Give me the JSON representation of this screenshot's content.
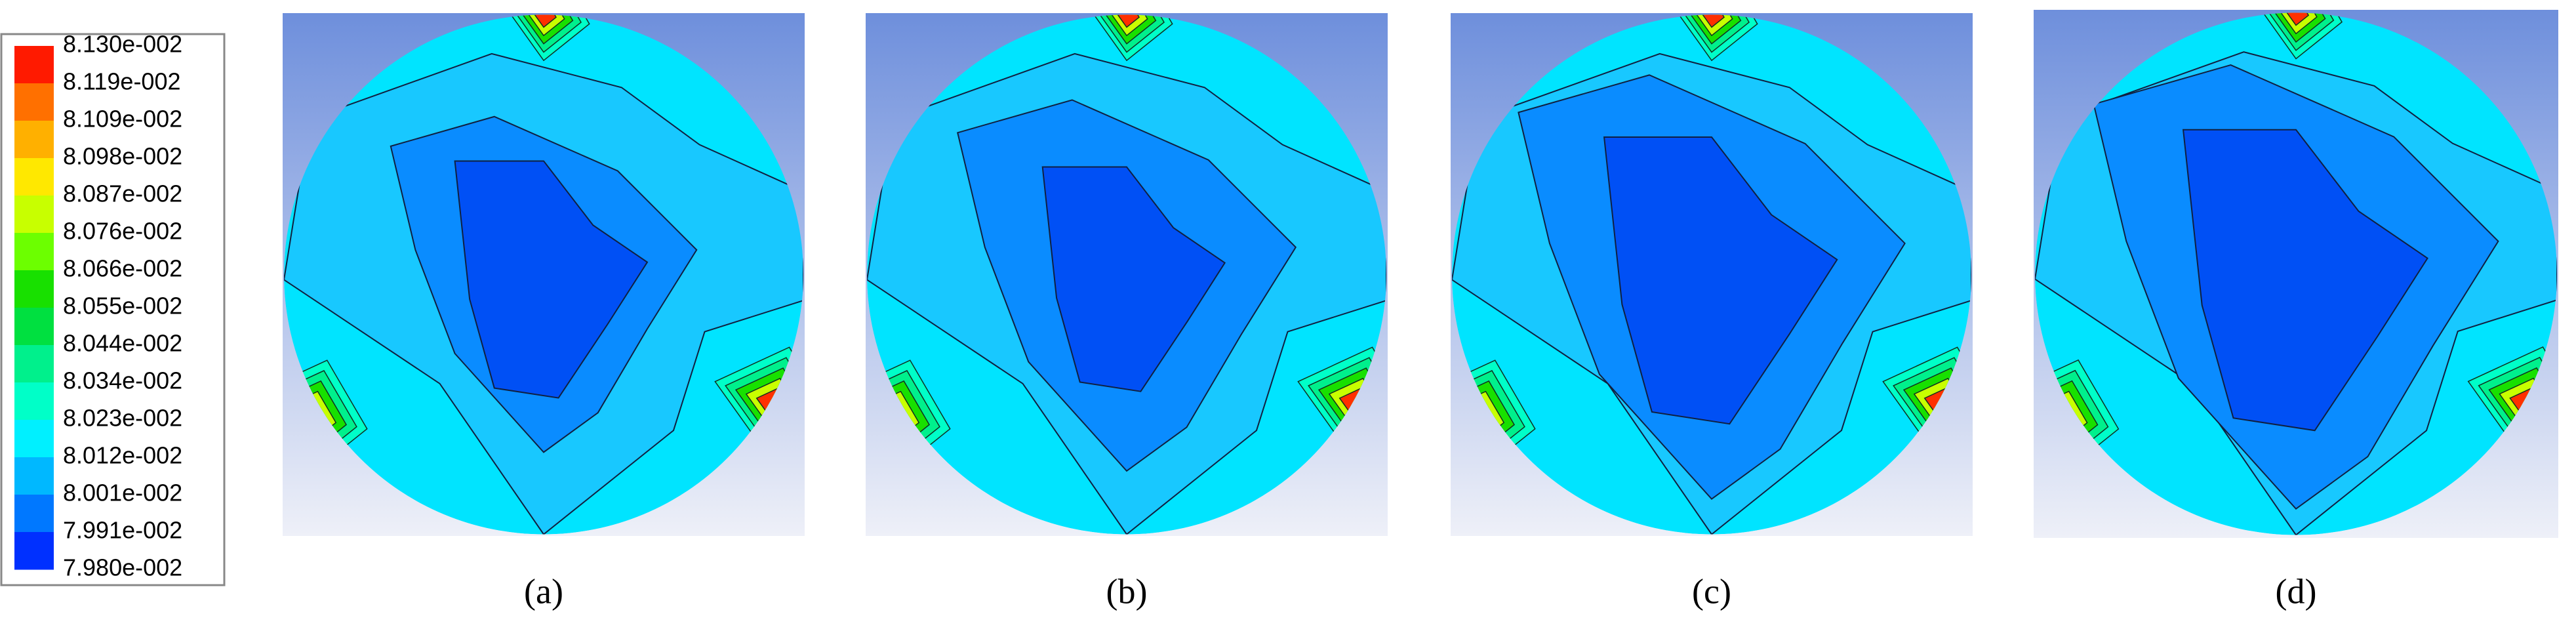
{
  "colorbar": {
    "labels": [
      "8.130e-002",
      "8.119e-002",
      "8.109e-002",
      "8.098e-002",
      "8.087e-002",
      "8.076e-002",
      "8.066e-002",
      "8.055e-002",
      "8.044e-002",
      "8.034e-002",
      "8.023e-002",
      "8.012e-002",
      "8.001e-002",
      "7.991e-002",
      "7.980e-002"
    ]
  },
  "panels": [
    {
      "label": "(a)"
    },
    {
      "label": "(b)"
    },
    {
      "label": "(c)"
    },
    {
      "label": "(d)"
    }
  ]
}
